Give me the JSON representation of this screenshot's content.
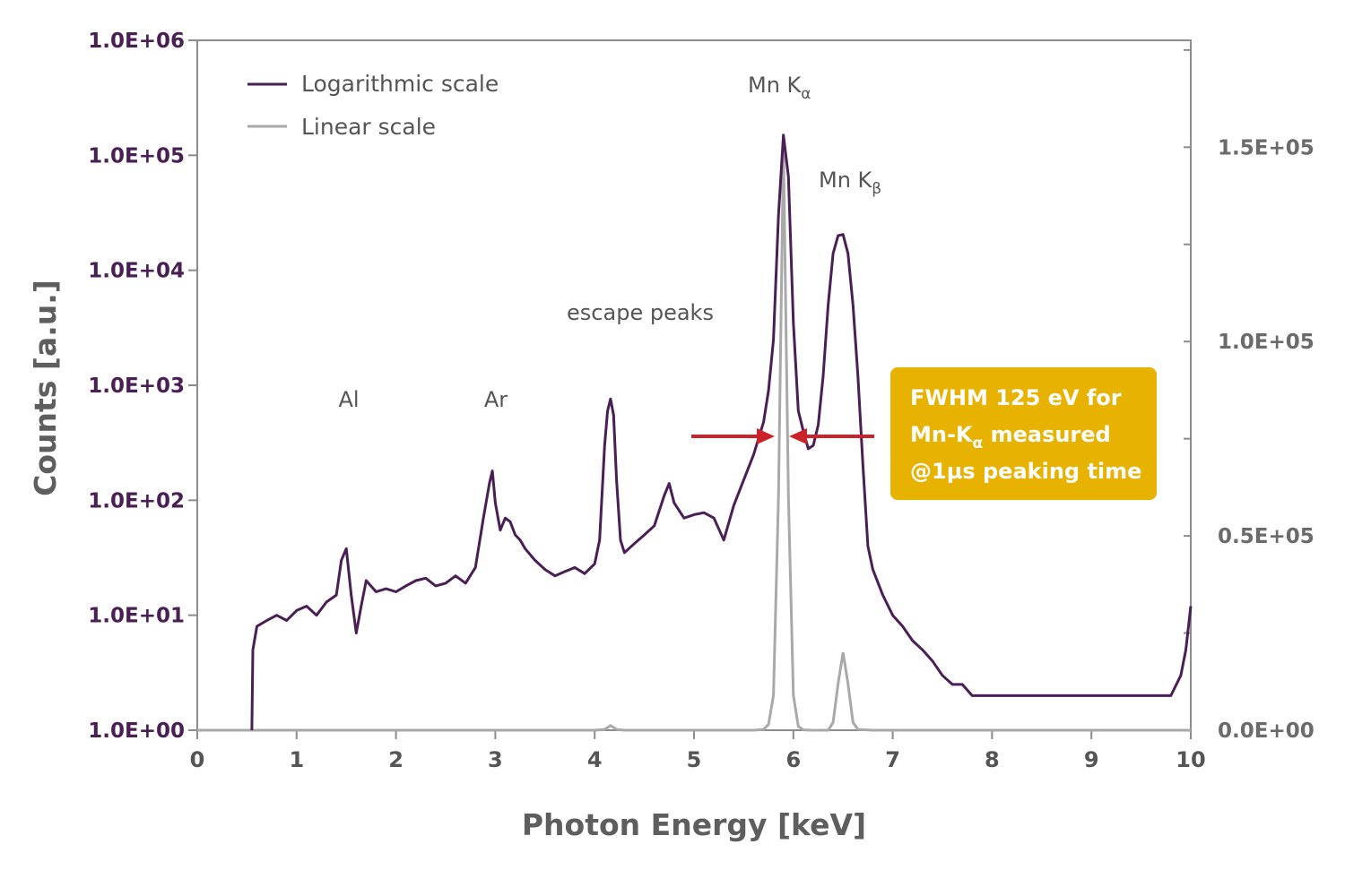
{
  "chart_data": {
    "type": "line",
    "xlabel": "Photon Energy [keV]",
    "ylabel": "Counts [a.u.]",
    "xlim": [
      0,
      10
    ],
    "x_ticks": [
      "0",
      "1",
      "2",
      "3",
      "4",
      "5",
      "6",
      "7",
      "8",
      "9",
      "10"
    ],
    "y_left": {
      "scale": "log",
      "lim": [
        1,
        1000000
      ],
      "ticks": [
        1,
        10,
        100,
        1000,
        10000,
        100000,
        1000000
      ],
      "tick_labels": [
        "1.0E+00",
        "1.0E+01",
        "1.0E+02",
        "1.0E+03",
        "1.0E+04",
        "1.0E+05",
        "1.0E+06"
      ],
      "color": "#4a1f55"
    },
    "y_right": {
      "scale": "linear",
      "lim": [
        0,
        177500
      ],
      "ticks": [
        0,
        50000,
        100000,
        150000
      ],
      "tick_labels": [
        "0.0E+00",
        "0.5E+05",
        "1.0E+05",
        "1.5E+05"
      ],
      "color": "#6b6b6b"
    },
    "legend": {
      "position": "top-left"
    },
    "series": [
      {
        "name": "Logarithmic scale",
        "axis": "left",
        "color": "#4a1f55",
        "x": [
          0.55,
          0.56,
          0.6,
          0.7,
          0.8,
          0.9,
          1.0,
          1.1,
          1.2,
          1.3,
          1.4,
          1.45,
          1.5,
          1.55,
          1.6,
          1.65,
          1.7,
          1.8,
          1.9,
          2.0,
          2.1,
          2.2,
          2.3,
          2.4,
          2.5,
          2.6,
          2.7,
          2.8,
          2.88,
          2.94,
          2.97,
          3.0,
          3.05,
          3.1,
          3.15,
          3.2,
          3.25,
          3.3,
          3.4,
          3.5,
          3.6,
          3.7,
          3.8,
          3.9,
          4.0,
          4.05,
          4.1,
          4.13,
          4.16,
          4.19,
          4.22,
          4.26,
          4.3,
          4.4,
          4.5,
          4.6,
          4.7,
          4.75,
          4.8,
          4.9,
          5.0,
          5.1,
          5.2,
          5.3,
          5.4,
          5.5,
          5.6,
          5.7,
          5.75,
          5.8,
          5.85,
          5.9,
          5.95,
          6.0,
          6.05,
          6.1,
          6.15,
          6.2,
          6.25,
          6.3,
          6.35,
          6.4,
          6.45,
          6.5,
          6.55,
          6.6,
          6.65,
          6.7,
          6.75,
          6.8,
          6.9,
          7.0,
          7.1,
          7.2,
          7.3,
          7.4,
          7.5,
          7.6,
          7.7,
          7.8,
          7.9,
          8.0,
          8.2,
          8.4,
          8.6,
          8.8,
          9.0,
          9.2,
          9.4,
          9.6,
          9.8,
          9.9,
          9.95,
          10.0
        ],
        "y": [
          1,
          5,
          8,
          9,
          10,
          9,
          11,
          12,
          10,
          13,
          15,
          30,
          38,
          15,
          7,
          12,
          20,
          16,
          17,
          16,
          18,
          20,
          21,
          18,
          19,
          22,
          19,
          26,
          70,
          140,
          180,
          95,
          55,
          70,
          65,
          50,
          45,
          38,
          30,
          25,
          22,
          24,
          26,
          23,
          28,
          45,
          300,
          600,
          760,
          550,
          150,
          45,
          35,
          42,
          50,
          60,
          110,
          140,
          95,
          70,
          75,
          78,
          70,
          45,
          90,
          150,
          250,
          480,
          900,
          2500,
          30000,
          150000,
          65000,
          3500,
          600,
          400,
          280,
          300,
          450,
          1200,
          5000,
          14000,
          20000,
          20500,
          14000,
          5000,
          1200,
          200,
          40,
          25,
          15,
          10,
          8,
          6,
          5,
          4,
          3,
          2.5,
          2.5,
          2,
          2,
          2,
          2,
          2,
          2,
          2,
          2,
          2,
          2,
          2,
          2,
          3,
          5,
          12
        ]
      },
      {
        "name": "Linear scale",
        "axis": "right",
        "color": "#a9a9a9",
        "x": [
          0,
          4.0,
          4.1,
          4.16,
          4.22,
          4.3,
          5.6,
          5.7,
          5.75,
          5.8,
          5.85,
          5.9,
          5.95,
          6.0,
          6.05,
          6.1,
          6.2,
          6.35,
          6.4,
          6.45,
          6.5,
          6.55,
          6.6,
          6.65,
          6.8,
          10.0
        ],
        "y": [
          0,
          0,
          200,
          1200,
          200,
          0,
          0,
          200,
          1500,
          9000,
          60000,
          150000,
          60000,
          9000,
          1000,
          100,
          0,
          0,
          2000,
          12000,
          20000,
          12000,
          2000,
          200,
          0,
          0
        ]
      }
    ],
    "annotations": {
      "al": "Al",
      "ar": "Ar",
      "escape_peaks": "escape peaks",
      "mn_ka": {
        "main": "Mn K",
        "sub": "α"
      },
      "mn_kb": {
        "main": "Mn K",
        "sub": "β"
      }
    },
    "callout": {
      "line1": "FWHM 125 eV for",
      "line2_prefix": "Mn-K",
      "line2_sub": "α",
      "line2_suffix": " measured",
      "line3": "@1µs peaking time",
      "background": "#e8b200",
      "arrow_color": "#cc2229"
    }
  }
}
